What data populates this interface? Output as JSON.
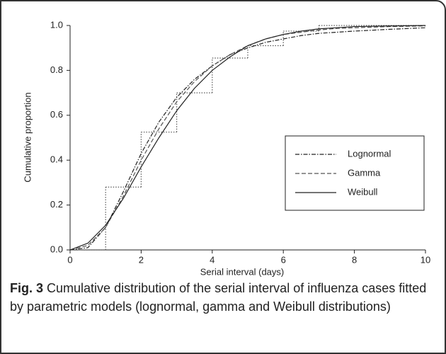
{
  "chart_data": {
    "type": "line",
    "x_label": "Serial interval (days)",
    "y_label": "Cumulative proportion",
    "x": [
      0,
      0.5,
      1,
      1.5,
      2,
      2.5,
      3,
      3.5,
      4,
      4.5,
      5,
      5.5,
      6,
      6.5,
      7,
      7.5,
      8,
      9,
      10
    ],
    "series": [
      {
        "name": "Lognormal",
        "color": "#222222",
        "dash": "dashdot",
        "values": [
          0,
          0.01,
          0.1,
          0.26,
          0.43,
          0.57,
          0.68,
          0.76,
          0.82,
          0.87,
          0.9,
          0.925,
          0.94,
          0.955,
          0.965,
          0.97,
          0.975,
          0.983,
          0.99
        ]
      },
      {
        "name": "Gamma",
        "color": "#555555",
        "dash": "dashed",
        "values": [
          0,
          0.02,
          0.1,
          0.24,
          0.4,
          0.54,
          0.66,
          0.75,
          0.82,
          0.87,
          0.91,
          0.94,
          0.96,
          0.97,
          0.98,
          0.987,
          0.99,
          0.995,
          0.998
        ]
      },
      {
        "name": "Weibull",
        "color": "#222222",
        "dash": "solid",
        "values": [
          0,
          0.03,
          0.11,
          0.23,
          0.37,
          0.5,
          0.62,
          0.72,
          0.8,
          0.86,
          0.91,
          0.94,
          0.96,
          0.975,
          0.985,
          0.99,
          0.995,
          0.998,
          1.0
        ]
      }
    ],
    "steps": {
      "color": "#555555",
      "dash": "dotted",
      "x": [
        0,
        1,
        2,
        3,
        4,
        5,
        6,
        7,
        10
      ],
      "values": [
        0,
        0.28,
        0.525,
        0.7,
        0.855,
        0.91,
        0.975,
        1.0,
        1.0
      ]
    },
    "xlim": [
      0,
      10
    ],
    "xticks": [
      0,
      2,
      4,
      6,
      8,
      10
    ],
    "ylim": [
      0,
      1
    ],
    "yticks": [
      {
        "value": 0,
        "label": "0.0"
      },
      {
        "value": 0.2,
        "label": "0.2"
      },
      {
        "value": 0.4,
        "label": "0.4"
      },
      {
        "value": 0.6,
        "label": "0.6"
      },
      {
        "value": 0.8,
        "label": "0.8"
      },
      {
        "value": 1,
        "label": "1.0"
      }
    ],
    "grid": false,
    "legend": "right"
  },
  "caption": {
    "label": "Fig. 3",
    "text": "Cumulative distribution of the serial interval of influenza cases fitted by parametric models (lognormal, gamma and Weibull distributions)"
  }
}
